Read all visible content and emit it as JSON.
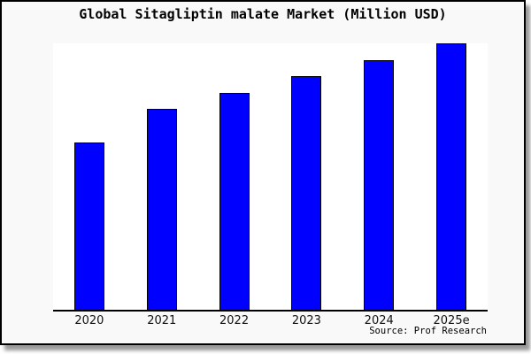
{
  "chart_data": {
    "type": "bar",
    "title": "Global Sitagliptin malate Market (Million USD)",
    "categories": [
      "2020",
      "2021",
      "2022",
      "2023",
      "2024",
      "2025e"
    ],
    "series": [
      {
        "name": "Global Sitagliptin malate Market",
        "values_pct_of_max": [
          62.7,
          75.3,
          81.3,
          87.7,
          93.7,
          100.0
        ]
      }
    ],
    "values_unit": "percent of tallest bar (chart shows no numeric y-axis)",
    "xlabel": "",
    "ylabel": "",
    "y_axis_labels_visible": false,
    "gridlines": false,
    "legend_visible": false,
    "axis_spines_visible": [
      "bottom"
    ],
    "source_note": "Source: Prof Research",
    "colors": {
      "bar_fill": "#0000ff",
      "bar_edge": "#000000",
      "plot_background": "#ffffff",
      "frame_background": "#f9f9f9",
      "frame_border": "#000000",
      "text": "#000000"
    }
  }
}
